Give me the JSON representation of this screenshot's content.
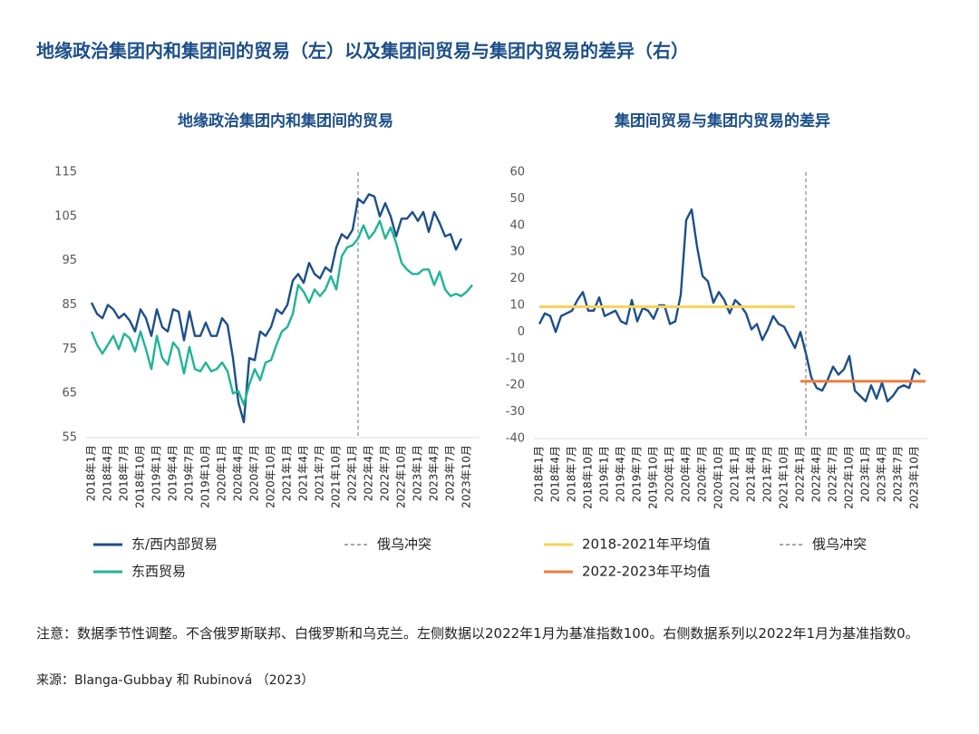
{
  "title": "地缘政治集团内和集团间的贸易（左）以及集团间贸易与集团内贸易的差异（右）",
  "note": "注意：数据季节性调整。不含俄罗斯联邦、白俄罗斯和乌克兰。左侧数据以2022年1月为基准指数100。右侧数据系列以2022年1月为基准指数0。",
  "source": "来源：Blanga-Gubbay 和 Rubinová （2023）",
  "chart_data": [
    {
      "type": "line",
      "title": "地缘政治集团内和集团间的贸易",
      "categories": [
        "2018年1月",
        null,
        null,
        "2018年4月",
        null,
        null,
        "2018年7月",
        null,
        null,
        "2018年10月",
        null,
        null,
        "2019年1月",
        null,
        null,
        "2019年4月",
        null,
        null,
        "2019年7月",
        null,
        null,
        "2019年10月",
        null,
        null,
        "2020年1月",
        null,
        null,
        "2020年4月",
        null,
        null,
        "2020年7月",
        null,
        null,
        "2020年10月",
        null,
        null,
        "2021年1月",
        null,
        null,
        "2021年4月",
        null,
        null,
        "2021年7月",
        null,
        null,
        "2021年10月",
        null,
        null,
        "2022年1月",
        null,
        null,
        "2022年4月",
        null,
        null,
        "2022年7月",
        null,
        null,
        "2022年10月",
        null,
        null,
        "2023年1月",
        null,
        null,
        "2023年4月",
        null,
        null,
        "2023年7月",
        null,
        null,
        "2023年10月",
        null,
        null
      ],
      "series": [
        {
          "name": "东/西内部贸易",
          "color": "#1c4f8a",
          "values": [
            85.5,
            83,
            82,
            85,
            84,
            82,
            83,
            81.5,
            79,
            84,
            82,
            78,
            84,
            80,
            79,
            84,
            83.5,
            77,
            83.5,
            78,
            78,
            81,
            78,
            78,
            82,
            80.5,
            73,
            63,
            58.5,
            73,
            72.5,
            79,
            78,
            80,
            84,
            83,
            85,
            90.5,
            92,
            90,
            94.5,
            92,
            91,
            93.5,
            92.5,
            98,
            101,
            100,
            102,
            109,
            108,
            110,
            109.5,
            105,
            108,
            105,
            100.5,
            104.5,
            104.5,
            106,
            104,
            106,
            101.5,
            106,
            103.5,
            100.5,
            101,
            97.5,
            100,
            null,
            null,
            null
          ]
        },
        {
          "name": "东西贸易",
          "color": "#1fb595",
          "values": [
            79,
            76,
            74,
            76,
            78,
            75,
            78.5,
            77.5,
            74.5,
            79,
            75,
            70.5,
            78,
            73,
            71.5,
            76.5,
            75,
            69.5,
            75.5,
            70.5,
            70,
            72,
            70,
            70.5,
            72,
            70,
            65,
            65.5,
            62.5,
            67,
            70.5,
            68,
            72,
            72.5,
            76,
            79,
            80,
            83,
            89.5,
            88,
            85.5,
            88.5,
            87,
            88.5,
            91.5,
            88.5,
            96,
            98,
            98.5,
            100,
            103,
            100,
            101.5,
            104,
            100,
            102.5,
            99,
            94.5,
            93,
            92,
            92,
            93,
            93,
            89.5,
            92.5,
            88.5,
            87,
            87.5,
            87,
            88,
            89.5,
            null
          ]
        }
      ],
      "event": {
        "name": "俄乌冲突",
        "index": 49,
        "color": "#888888"
      },
      "ylim": [
        55,
        115
      ],
      "yticks": [
        55,
        65,
        75,
        85,
        95,
        105,
        115
      ],
      "grid": false
    },
    {
      "type": "line",
      "title": "集团间贸易与集团内贸易的差异",
      "categories": [
        "2018年1月",
        null,
        null,
        "2018年4月",
        null,
        null,
        "2018年7月",
        null,
        null,
        "2018年10月",
        null,
        null,
        "2019年1月",
        null,
        null,
        "2019年4月",
        null,
        null,
        "2019年7月",
        null,
        null,
        "2019年10月",
        null,
        null,
        "2020年1月",
        null,
        null,
        "2020年4月",
        null,
        null,
        "2020年7月",
        null,
        null,
        "2020年10月",
        null,
        null,
        "2021年1月",
        null,
        null,
        "2021年4月",
        null,
        null,
        "2021年7月",
        null,
        null,
        "2021年10月",
        null,
        null,
        "2022年1月",
        null,
        null,
        "2022年4月",
        null,
        null,
        "2022年7月",
        null,
        null,
        "2022年10月",
        null,
        null,
        "2023年1月",
        null,
        null,
        "2023年4月",
        null,
        null,
        "2023年7月",
        null,
        null,
        "2023年10月",
        null,
        null
      ],
      "series": [
        {
          "color": "#1c4f8a",
          "values": [
            3,
            7,
            6,
            0,
            6,
            7,
            8,
            12,
            15,
            8,
            8,
            13,
            6,
            7,
            8,
            4,
            3,
            12,
            4,
            9,
            8,
            5,
            10,
            10,
            3,
            4,
            14,
            42,
            46,
            32,
            21,
            19,
            11,
            15,
            12,
            7,
            12,
            10,
            7,
            1,
            3,
            -3,
            1,
            6,
            3,
            2,
            -2,
            -6,
            0,
            -8,
            -17,
            -21,
            -22,
            -18,
            -13,
            -16,
            -14,
            -9,
            -22,
            -24,
            -26,
            -20,
            -25,
            -19,
            -26,
            -24,
            -21,
            -20,
            -21,
            -14,
            -16,
            null
          ]
        },
        {
          "name": "2018-2021年平均值",
          "color": "#f7d35a",
          "width": 3,
          "values": [
            9.5,
            9.5,
            9.5,
            9.5,
            9.5,
            9.5,
            9.5,
            9.5,
            9.5,
            9.5,
            9.5,
            9.5,
            9.5,
            9.5,
            9.5,
            9.5,
            9.5,
            9.5,
            9.5,
            9.5,
            9.5,
            9.5,
            9.5,
            9.5,
            9.5,
            9.5,
            9.5,
            9.5,
            9.5,
            9.5,
            9.5,
            9.5,
            9.5,
            9.5,
            9.5,
            9.5,
            9.5,
            9.5,
            9.5,
            9.5,
            9.5,
            9.5,
            9.5,
            9.5,
            9.5,
            9.5,
            9.5,
            9.5,
            null,
            null,
            null,
            null,
            null,
            null,
            null,
            null,
            null,
            null,
            null,
            null,
            null,
            null,
            null,
            null,
            null,
            null,
            null,
            null,
            null,
            null,
            null,
            null
          ]
        },
        {
          "name": "2022-2023年平均值",
          "color": "#f07d3c",
          "width": 3,
          "values": [
            null,
            null,
            null,
            null,
            null,
            null,
            null,
            null,
            null,
            null,
            null,
            null,
            null,
            null,
            null,
            null,
            null,
            null,
            null,
            null,
            null,
            null,
            null,
            null,
            null,
            null,
            null,
            null,
            null,
            null,
            null,
            null,
            null,
            null,
            null,
            null,
            null,
            null,
            null,
            null,
            null,
            null,
            null,
            null,
            null,
            null,
            null,
            null,
            -18.5,
            -18.5,
            -18.5,
            -18.5,
            -18.5,
            -18.5,
            -18.5,
            -18.5,
            -18.5,
            -18.5,
            -18.5,
            -18.5,
            -18.5,
            -18.5,
            -18.5,
            -18.5,
            -18.5,
            -18.5,
            -18.5,
            -18.5,
            -18.5,
            -18.5,
            -18.5,
            -18.5
          ]
        }
      ],
      "event": {
        "name": "俄乌冲突",
        "index": 49,
        "color": "#888888"
      },
      "ylim": [
        -40,
        60
      ],
      "yticks": [
        -40,
        -30,
        -20,
        -10,
        0,
        10,
        20,
        30,
        40,
        50,
        60
      ],
      "grid": false
    }
  ]
}
